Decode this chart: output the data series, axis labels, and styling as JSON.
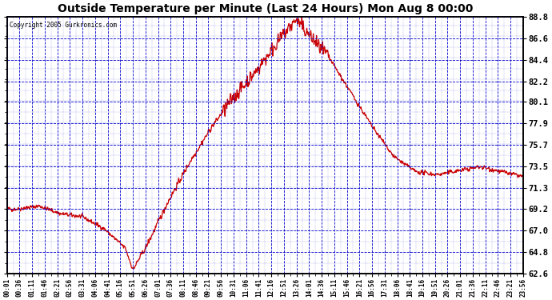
{
  "title": "Outside Temperature per Minute (Last 24 Hours) Mon Aug 8 00:00",
  "copyright": "Copyright 2005 Gurkronics.com",
  "plot_bg_color": "#ffffff",
  "fig_bg_color": "#ffffff",
  "line_color": "#cc0000",
  "grid_color": "#0000cc",
  "ytick_labels": [
    "62.6",
    "64.8",
    "67.0",
    "69.2",
    "71.3",
    "73.5",
    "75.7",
    "77.9",
    "80.1",
    "82.2",
    "84.4",
    "86.6",
    "88.8"
  ],
  "ytick_vals": [
    62.6,
    64.8,
    67.0,
    69.2,
    71.3,
    73.5,
    75.7,
    77.9,
    80.1,
    82.2,
    84.4,
    86.6,
    88.8
  ],
  "ylim": [
    62.6,
    88.8
  ],
  "xtick_labels": [
    "00:01",
    "00:36",
    "01:11",
    "01:46",
    "02:21",
    "02:56",
    "03:31",
    "04:06",
    "04:41",
    "05:16",
    "05:51",
    "06:26",
    "07:01",
    "07:36",
    "08:11",
    "08:46",
    "09:21",
    "09:56",
    "10:31",
    "11:06",
    "11:41",
    "12:16",
    "12:51",
    "13:26",
    "14:01",
    "14:36",
    "15:11",
    "15:46",
    "16:21",
    "16:56",
    "17:31",
    "18:06",
    "18:41",
    "19:16",
    "19:51",
    "20:26",
    "21:01",
    "21:36",
    "22:11",
    "22:46",
    "23:21",
    "23:56"
  ],
  "figsize": [
    6.9,
    3.75
  ],
  "dpi": 100
}
